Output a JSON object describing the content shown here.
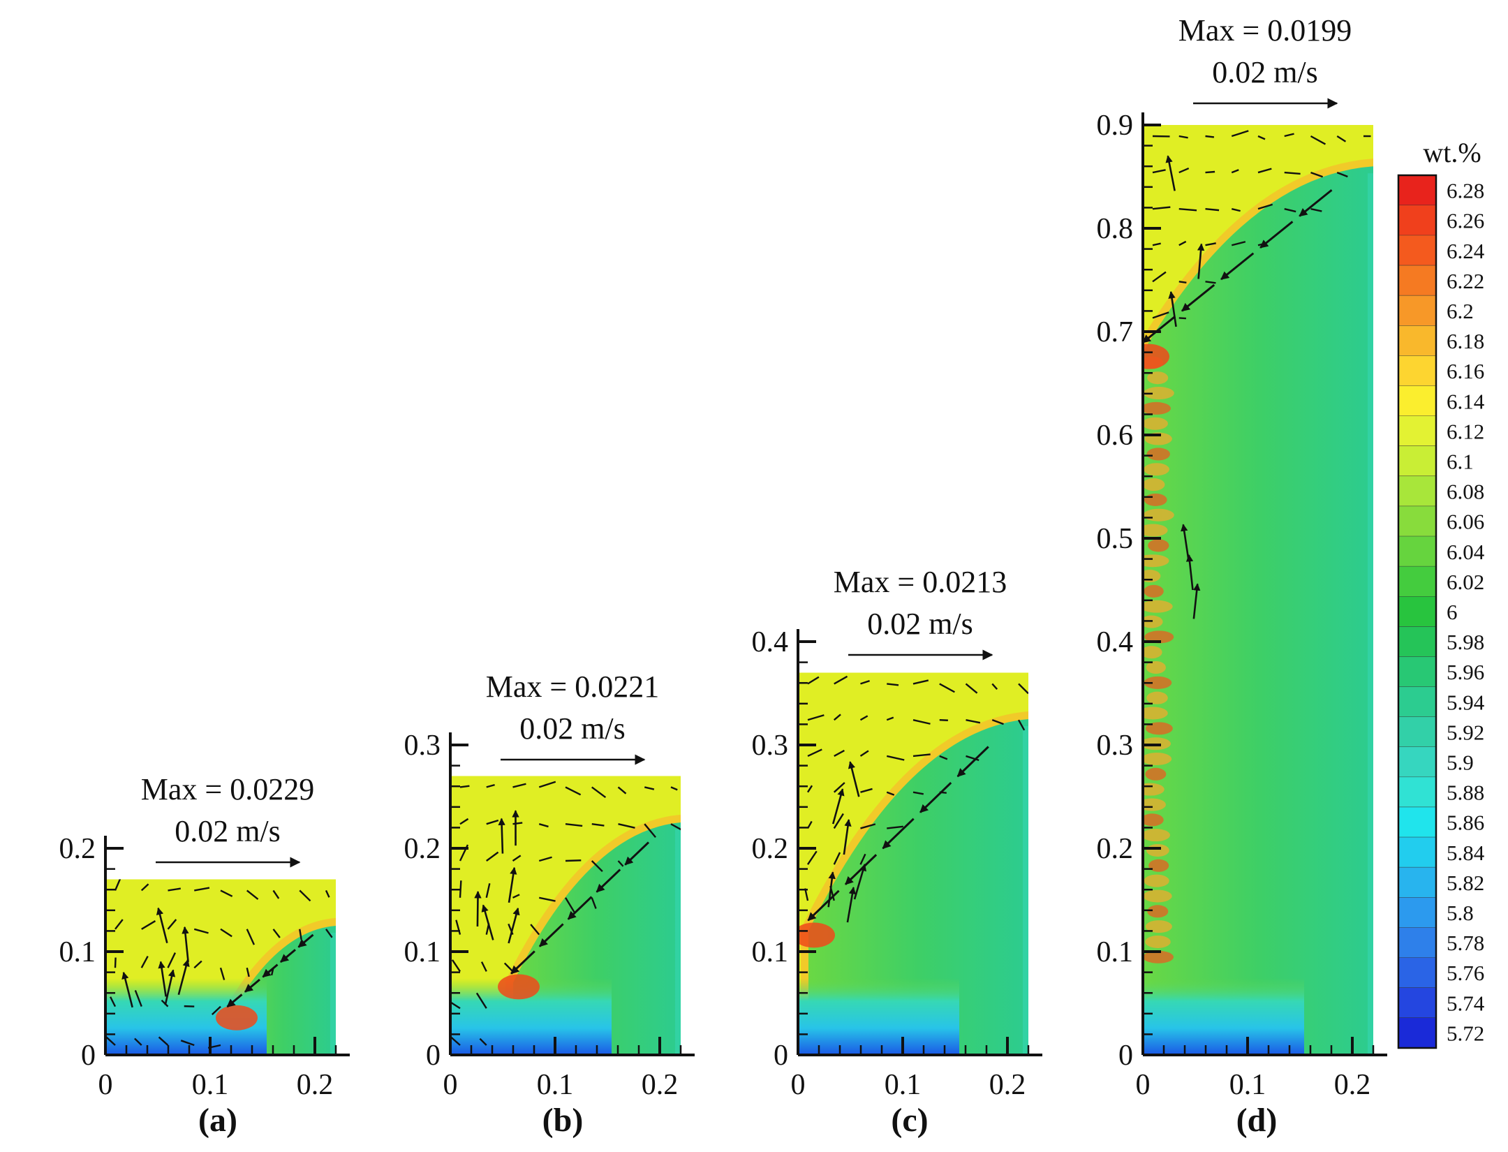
{
  "chart_data": [
    {
      "type": "heatmap",
      "panel_label": "(a)",
      "max_label": "Max = 0.0229",
      "ref_vector_label": "0.02 m/s",
      "max_velocity": 0.0229,
      "xlim": [
        0,
        0.22
      ],
      "ylim": [
        0,
        0.17
      ],
      "axis_max_y": 0.2,
      "x_ticks": [
        "0",
        "0.1",
        "0.2"
      ],
      "y_ticks": [
        "0",
        "0.1",
        "0.2"
      ],
      "front": {
        "top_x": 0.22,
        "top_y": 0.125,
        "bottom_x": 0.12,
        "bottom_y": 0.04
      }
    },
    {
      "type": "heatmap",
      "panel_label": "(b)",
      "max_label": "Max = 0.0221",
      "ref_vector_label": "0.02 m/s",
      "max_velocity": 0.0221,
      "xlim": [
        0,
        0.22
      ],
      "ylim": [
        0,
        0.27
      ],
      "axis_max_y": 0.3,
      "x_ticks": [
        "0",
        "0.1",
        "0.2"
      ],
      "y_ticks": [
        "0",
        "0.1",
        "0.2",
        "0.3"
      ],
      "front": {
        "top_x": 0.22,
        "top_y": 0.225,
        "bottom_x": 0.06,
        "bottom_y": 0.07
      }
    },
    {
      "type": "heatmap",
      "panel_label": "(c)",
      "max_label": "Max = 0.0213",
      "ref_vector_label": "0.02 m/s",
      "max_velocity": 0.0213,
      "xlim": [
        0,
        0.22
      ],
      "ylim": [
        0,
        0.37
      ],
      "axis_max_y": 0.4,
      "x_ticks": [
        "0",
        "0.1",
        "0.2"
      ],
      "y_ticks": [
        "0",
        "0.1",
        "0.2",
        "0.3",
        "0.4"
      ],
      "front": {
        "top_x": 0.22,
        "top_y": 0.325,
        "bottom_x": 0.01,
        "bottom_y": 0.12
      }
    },
    {
      "type": "heatmap",
      "panel_label": "(d)",
      "max_label": "Max = 0.0199",
      "ref_vector_label": "0.02 m/s",
      "max_velocity": 0.0199,
      "xlim": [
        0,
        0.22
      ],
      "ylim": [
        0,
        0.9
      ],
      "axis_max_y": 0.9,
      "x_ticks": [
        "0",
        "0.1",
        "0.2"
      ],
      "y_ticks": [
        "0",
        "0.1",
        "0.2",
        "0.3",
        "0.4",
        "0.5",
        "0.6",
        "0.7",
        "0.8",
        "0.9"
      ],
      "front": {
        "top_x": 0.22,
        "top_y": 0.86,
        "bottom_x": 0.0,
        "bottom_y": 0.68
      }
    }
  ],
  "colorbar": {
    "title": "wt.%",
    "levels": [
      "6.28",
      "6.26",
      "6.24",
      "6.22",
      "6.2",
      "6.18",
      "6.16",
      "6.14",
      "6.12",
      "6.1",
      "6.08",
      "6.06",
      "6.04",
      "6.02",
      "6",
      "5.98",
      "5.96",
      "5.94",
      "5.92",
      "5.9",
      "5.88",
      "5.86",
      "5.84",
      "5.82",
      "5.8",
      "5.78",
      "5.76",
      "5.74",
      "5.72"
    ],
    "colors": [
      "#e8231c",
      "#f0401c",
      "#f45a1e",
      "#f57a22",
      "#f79828",
      "#f9b82c",
      "#fdd530",
      "#fbee2e",
      "#e3f233",
      "#c9ee35",
      "#a8e63a",
      "#88dc3c",
      "#66d43e",
      "#44cc3e",
      "#28c43e",
      "#25c458",
      "#28c874",
      "#2ccc90",
      "#32d0a8",
      "#36d6bf",
      "#30e2d4",
      "#20e4ec",
      "#22cdee",
      "#28b4ee",
      "#2c9aee",
      "#2e80ea",
      "#2a64e6",
      "#2446e0",
      "#1a2ad8"
    ]
  },
  "colors": {
    "cold_zone": "#e0ee24",
    "bulk": "#2ccc90",
    "enriched": "#ef4a1a",
    "depleted": "#2a64e6"
  }
}
